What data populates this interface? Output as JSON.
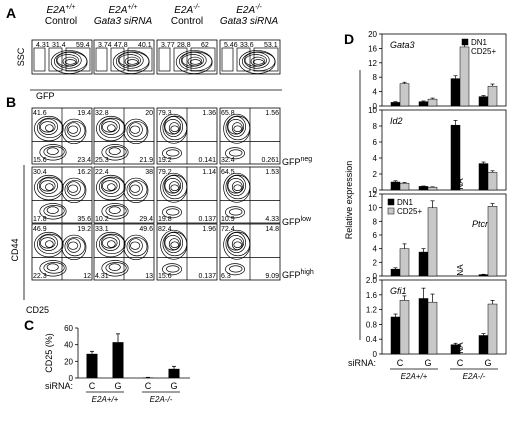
{
  "panels": {
    "A": "A",
    "B": "B",
    "C": "C",
    "D": "D"
  },
  "columns": [
    {
      "genotype": "E2A",
      "sup": "+/+",
      "treatment": "Control",
      "treatment_italic": false
    },
    {
      "genotype": "E2A",
      "sup": "+/+",
      "treatment": "Gata3 siRNA",
      "treatment_italic": true
    },
    {
      "genotype": "E2A",
      "sup": "-/-",
      "treatment": "Control",
      "treatment_italic": false
    },
    {
      "genotype": "E2A",
      "sup": "-/-",
      "treatment": "Gata3 siRNA",
      "treatment_italic": true
    }
  ],
  "panelA": {
    "ylabel": "SSC",
    "xlabel": "GFP",
    "gates": [
      [
        "4.31",
        "31.4",
        "59.4"
      ],
      [
        "3.74",
        "47.8",
        "40.1"
      ],
      [
        "3.77",
        "28.8",
        "62"
      ],
      [
        "5.46",
        "33.6",
        "53.1"
      ]
    ]
  },
  "panelB": {
    "ylabel": "CD44",
    "xlabel": "CD25",
    "rows": [
      {
        "label": "GFP",
        "sup": "neg",
        "quadrants": [
          [
            "41.6",
            "19.4",
            "15.6",
            "23.4"
          ],
          [
            "32.8",
            "20",
            "25.3",
            "21.9"
          ],
          [
            "79.3",
            "1.36",
            "19.2",
            "0.141"
          ],
          [
            "65.8",
            "1.56",
            "32.4",
            "0.261"
          ]
        ]
      },
      {
        "label": "GFP",
        "sup": "low",
        "quadrants": [
          [
            "30.4",
            "16.2",
            "17.8",
            "35.6"
          ],
          [
            "22.4",
            "38",
            "10.2",
            "29.4"
          ],
          [
            "79.2",
            "1.14",
            "19.8",
            "0.137"
          ],
          [
            "64.5",
            "1.53",
            "10.9",
            "4.33"
          ]
        ]
      },
      {
        "label": "GFP",
        "sup": "high",
        "quadrants": [
          [
            "46.9",
            "19.2",
            "22.3",
            "12"
          ],
          [
            "33.1",
            "49.6",
            "4.31",
            "13"
          ],
          [
            "82.4",
            "1.96",
            "15.6",
            "0.137"
          ],
          [
            "72.4",
            "14.8",
            "6.3",
            "9.09"
          ]
        ]
      }
    ]
  },
  "chart_data": [
    {
      "panel": "C",
      "type": "bar",
      "ylabel": "CD25 (%)",
      "ylim": [
        0,
        60
      ],
      "yticks": [
        "0",
        "20",
        "40",
        "60"
      ],
      "categories": [
        "C",
        "G",
        "C",
        "G"
      ],
      "groups": [
        "E2A+/+",
        "E2A-/-"
      ],
      "xprefix": "siRNA:",
      "values": [
        29,
        43,
        0.5,
        11
      ],
      "errors": [
        3,
        10,
        0.3,
        3
      ],
      "color": "#000000"
    },
    {
      "panel": "D",
      "type": "bar",
      "ylabel": "Relative expression",
      "xprefix": "siRNA:",
      "categories": [
        "C",
        "G",
        "C",
        "G"
      ],
      "groups": [
        "E2A+/+",
        "E2A-/-"
      ],
      "series_names": [
        "DN1",
        "CD25+"
      ],
      "series_colors": [
        "#000000",
        "#c8c8c8"
      ],
      "subplots": [
        {
          "gene": "Gata3",
          "ylim": [
            0,
            20
          ],
          "yticks": [
            "0",
            "4",
            "8",
            "12",
            "16",
            "20"
          ],
          "legend": true,
          "na": [],
          "dn1": [
            1.0,
            1.2,
            7.6,
            2.6
          ],
          "dn1_err": [
            0.2,
            0.2,
            0.8,
            0.3
          ],
          "cd25": [
            6.2,
            1.9,
            16.4,
            5.5
          ],
          "cd25_err": [
            0.4,
            0.3,
            0.9,
            0.6
          ]
        },
        {
          "gene": "Id2",
          "ylim": [
            0,
            10
          ],
          "yticks": [
            "0",
            "2",
            "4",
            "6",
            "8",
            "10"
          ],
          "legend": false,
          "na": [
            2
          ],
          "dn1": [
            1.0,
            0.45,
            8.1,
            3.3
          ],
          "dn1_err": [
            0.15,
            0.05,
            0.6,
            0.2
          ],
          "cd25": [
            0.85,
            0.35,
            null,
            2.2
          ],
          "cd25_err": [
            0.1,
            0.05,
            null,
            0.2
          ]
        },
        {
          "gene": "Ptcra",
          "ylim": [
            0,
            12
          ],
          "yticks": [
            "0",
            "2",
            "4",
            "6",
            "8",
            "10",
            "12"
          ],
          "legend": true,
          "na": [
            2
          ],
          "dn1": [
            1.0,
            3.5,
            null,
            0.2
          ],
          "dn1_err": [
            0.2,
            0.5,
            null,
            0.05
          ],
          "cd25": [
            4.0,
            10.0,
            null,
            10.2
          ],
          "cd25_err": [
            0.7,
            1.0,
            null,
            0.4
          ]
        },
        {
          "gene": "Gfi1",
          "ylim": [
            0,
            2.0
          ],
          "yticks": [
            "0",
            "0.4",
            "0.8",
            "1.2",
            "1.6",
            "2.0"
          ],
          "legend": false,
          "na": [
            2
          ],
          "dn1": [
            1.0,
            1.5,
            0.25,
            0.5
          ],
          "dn1_err": [
            0.08,
            0.28,
            0.04,
            0.05
          ],
          "cd25": [
            1.45,
            1.4,
            null,
            1.35
          ],
          "cd25_err": [
            0.12,
            0.22,
            null,
            0.1
          ]
        }
      ]
    }
  ]
}
